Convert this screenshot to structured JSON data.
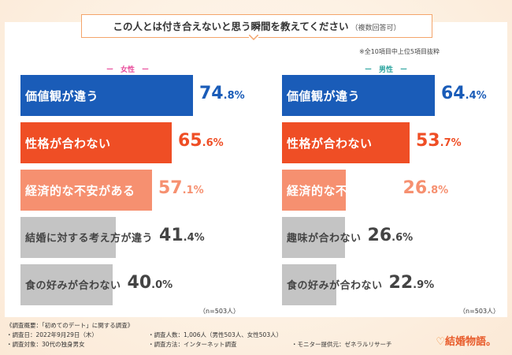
{
  "title": "この人とは付き合えないと思う瞬間を教えてください",
  "title_note": "（複数回答可）",
  "note": "※全10項目中上位5項目抜粋",
  "n_label": "（n=503人）",
  "colors": {
    "blue": "#1a5cb8",
    "red": "#ef4e25",
    "salmon": "#f69070",
    "gray": "#c4c4c4",
    "text_gray": "#444444",
    "pink": "#e84a9a",
    "teal": "#2ea5a0"
  },
  "chart_data": [
    {
      "type": "bar",
      "orientation": "horizontal",
      "group": "女性",
      "header": "ー　女性　ー",
      "categories": [
        "価値観が違う",
        "性格が合わない",
        "経済的な不安がある",
        "結婚に対する考え方が違う",
        "食の好みが合わない"
      ],
      "values": [
        74.8,
        65.6,
        57.1,
        41.4,
        40.0
      ],
      "value_labels": [
        [
          "74",
          ".8%"
        ],
        [
          "65",
          ".6%"
        ],
        [
          "57",
          ".1%"
        ],
        [
          "41",
          ".4%"
        ],
        [
          "40",
          ".0%"
        ]
      ],
      "unit": "%",
      "n": 503
    },
    {
      "type": "bar",
      "orientation": "horizontal",
      "group": "男性",
      "header": "ー　男性　ー",
      "categories": [
        "価値観が違う",
        "性格が合わない",
        "経済的な不安がある",
        "趣味が合わない",
        "食の好みが合わない"
      ],
      "values": [
        64.4,
        53.7,
        26.8,
        26.6,
        22.9
      ],
      "value_labels": [
        [
          "64",
          ".4%"
        ],
        [
          "53",
          ".7%"
        ],
        [
          "26",
          ".8%"
        ],
        [
          "26",
          ".6%"
        ],
        [
          "22",
          ".9%"
        ]
      ],
      "unit": "%",
      "n": 503
    }
  ],
  "footer": {
    "line1": "《調査概要：「初めてのデート」に関する調査》",
    "date": "・調査日：2022年9月29日（木）",
    "people": "・調査人数：1,006人（男性503人、女性503人）",
    "target": "・調査対象：30代の独身男女",
    "method": "・調査方法：インターネット調査",
    "provider": "・モニター提供元：ゼネラルリサーチ"
  },
  "logo": "結婚物語。"
}
